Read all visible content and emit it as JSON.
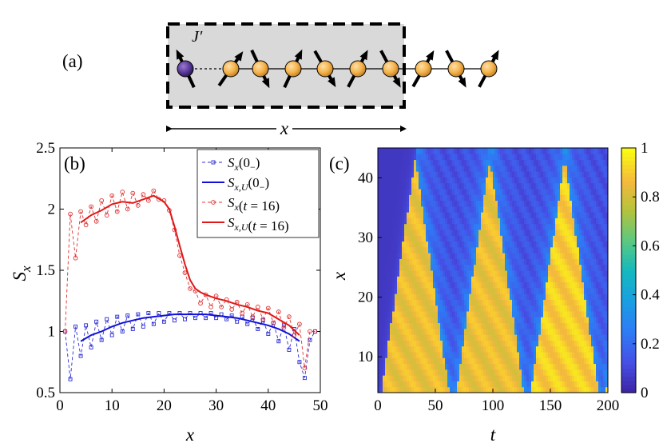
{
  "panel_a": {
    "label": "(a)",
    "coupling_label": "J′",
    "span_label": "x"
  },
  "panel_b": {
    "label": "(b)",
    "legend": [
      "S_x(0_)",
      "S_x,U(0_)",
      "S_x(t = 16)",
      "S_x,U(t = 16)"
    ]
  },
  "panel_c": {
    "label": "(c)",
    "colorbar_ticks": [
      "0",
      "0.2",
      "0.4",
      "0.6",
      "0.8",
      "1"
    ]
  },
  "chart_data": [
    {
      "type": "line",
      "title": "",
      "xlabel": "x",
      "ylabel": "S_x",
      "xlim": [
        0,
        50
      ],
      "ylim": [
        0.5,
        2.5
      ],
      "xticks": [
        0,
        10,
        20,
        30,
        40,
        50
      ],
      "yticks": [
        0.5,
        1,
        1.5,
        2,
        2.5
      ],
      "legend_position": "top-right",
      "series": [
        {
          "name": "S_x(0_)",
          "style": "dashed-square",
          "color": "#2b2bd6",
          "x": [
            1,
            2,
            3,
            4,
            5,
            6,
            7,
            8,
            9,
            10,
            11,
            12,
            13,
            14,
            15,
            16,
            17,
            18,
            19,
            20,
            21,
            22,
            23,
            24,
            25,
            26,
            27,
            28,
            29,
            30,
            31,
            32,
            33,
            34,
            35,
            36,
            37,
            38,
            39,
            40,
            41,
            42,
            43,
            44,
            45,
            46,
            47,
            48,
            49
          ],
          "y": [
            1.0,
            0.61,
            1.04,
            0.8,
            1.05,
            0.87,
            1.08,
            0.93,
            1.1,
            0.97,
            1.12,
            1.0,
            1.13,
            1.02,
            1.14,
            1.04,
            1.15,
            1.06,
            1.15,
            1.08,
            1.15,
            1.09,
            1.15,
            1.1,
            1.15,
            1.11,
            1.15,
            1.11,
            1.15,
            1.11,
            1.14,
            1.1,
            1.13,
            1.08,
            1.12,
            1.06,
            1.11,
            1.02,
            1.09,
            0.98,
            1.07,
            0.92,
            1.05,
            0.85,
            1.02,
            0.75,
            0.62,
            0.93,
            1.0
          ]
        },
        {
          "name": "S_x,U(0_)",
          "style": "solid",
          "color": "#1010d8",
          "x": [
            4,
            6,
            8,
            10,
            12,
            14,
            16,
            18,
            20,
            22,
            24,
            26,
            28,
            30,
            32,
            34,
            36,
            38,
            40,
            42,
            44,
            46
          ],
          "y": [
            0.92,
            0.97,
            1.0,
            1.04,
            1.07,
            1.09,
            1.11,
            1.12,
            1.13,
            1.14,
            1.14,
            1.14,
            1.14,
            1.13,
            1.12,
            1.11,
            1.09,
            1.07,
            1.05,
            1.02,
            0.98,
            0.92
          ]
        },
        {
          "name": "S_x(t = 16)",
          "style": "dashed-circle",
          "color": "#e03030",
          "x": [
            1,
            2,
            3,
            4,
            5,
            6,
            7,
            8,
            9,
            10,
            11,
            12,
            13,
            14,
            15,
            16,
            17,
            18,
            19,
            20,
            21,
            22,
            23,
            24,
            25,
            26,
            27,
            28,
            29,
            30,
            31,
            32,
            33,
            34,
            35,
            36,
            37,
            38,
            39,
            40,
            41,
            42,
            43,
            44,
            45,
            46,
            47,
            48,
            49
          ],
          "y": [
            1.0,
            1.96,
            1.6,
            1.98,
            1.87,
            2.02,
            1.9,
            2.07,
            1.95,
            2.11,
            1.98,
            2.14,
            2.0,
            2.13,
            2.03,
            2.12,
            2.07,
            2.15,
            2.08,
            2.07,
            1.99,
            1.83,
            1.62,
            1.48,
            1.35,
            1.33,
            1.23,
            1.3,
            1.2,
            1.29,
            1.2,
            1.26,
            1.18,
            1.24,
            1.15,
            1.22,
            1.12,
            1.2,
            1.1,
            1.19,
            1.07,
            1.16,
            1.03,
            1.12,
            0.97,
            1.06,
            0.7,
            1.0,
            1.0
          ]
        },
        {
          "name": "S_x,U(t = 16)",
          "style": "solid",
          "color": "#e01818",
          "x": [
            4,
            6,
            8,
            10,
            12,
            14,
            16,
            18,
            20,
            21,
            22,
            23,
            24,
            25,
            26,
            27,
            28,
            30,
            32,
            34,
            36,
            38,
            40,
            42,
            44,
            46
          ],
          "y": [
            1.89,
            1.95,
            1.99,
            2.04,
            2.06,
            2.05,
            2.08,
            2.11,
            2.06,
            2.0,
            1.86,
            1.7,
            1.55,
            1.42,
            1.35,
            1.32,
            1.3,
            1.27,
            1.25,
            1.22,
            1.2,
            1.17,
            1.15,
            1.1,
            1.05,
            0.97
          ]
        }
      ]
    },
    {
      "type": "heatmap",
      "title": "",
      "xlabel": "t",
      "ylabel": "x",
      "xlim": [
        0,
        200
      ],
      "ylim": [
        4,
        45
      ],
      "xticks": [
        0,
        50,
        100,
        150,
        200
      ],
      "yticks": [
        10,
        20,
        30,
        40
      ],
      "colorbar": {
        "min": 0,
        "max": 1,
        "ticks": [
          0,
          0.2,
          0.4,
          0.6,
          0.8,
          1
        ],
        "colormap": "parula"
      },
      "front_period": 65,
      "front_apex_times": [
        33,
        98,
        163
      ],
      "front_return_times": [
        65,
        130,
        195
      ],
      "front_speed_sites_per_time": 1.28
    }
  ]
}
